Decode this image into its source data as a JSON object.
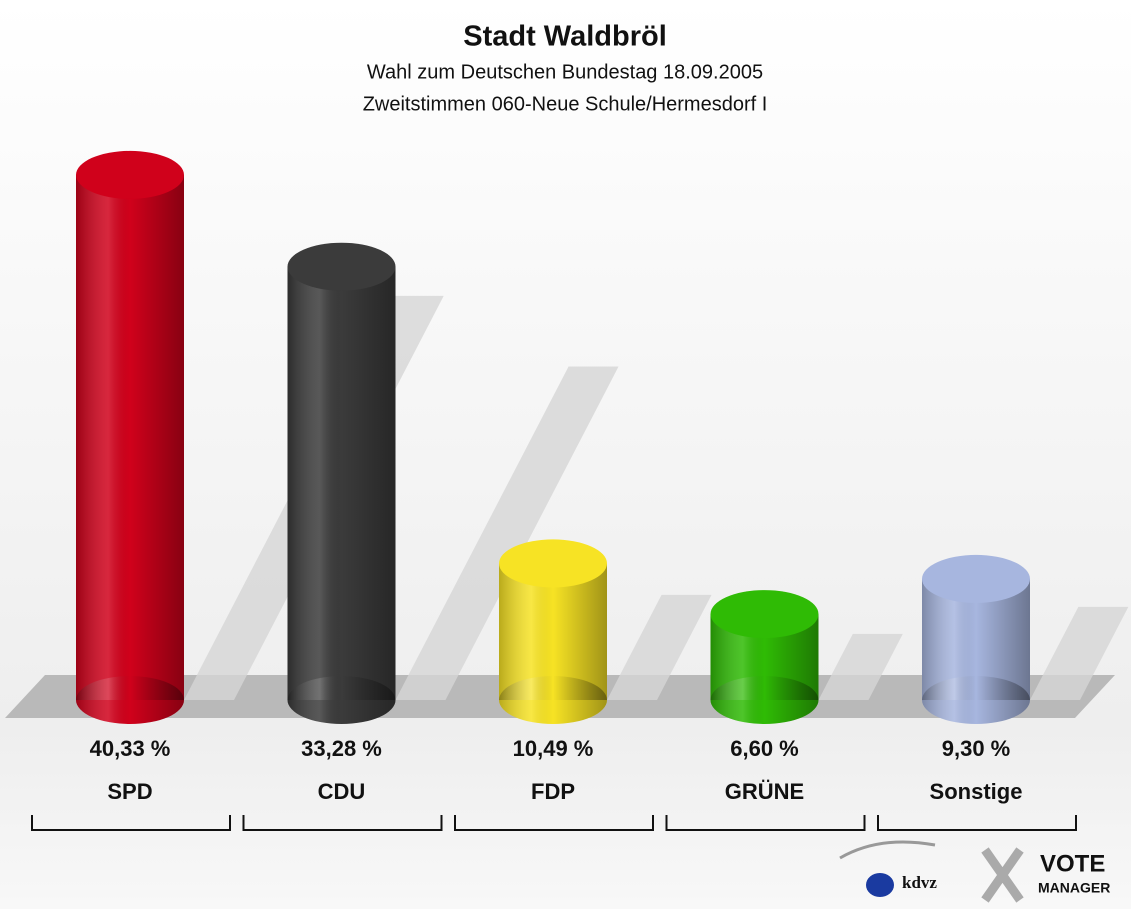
{
  "chart_data": {
    "type": "bar",
    "title": "Stadt Waldbröl",
    "subtitle": [
      "Wahl zum Deutschen Bundestag 18.09.2005",
      "Zweitstimmen 060-Neue Schule/Hermesdorf I"
    ],
    "categories": [
      "SPD",
      "CDU",
      "FDP",
      "GRÜNE",
      "Sonstige"
    ],
    "values": [
      40.33,
      33.28,
      10.49,
      6.6,
      9.3
    ],
    "value_labels": [
      "40,33 %",
      "33,28 %",
      "10,49 %",
      "6,60 %",
      "9,30 %"
    ],
    "colors": [
      "#d0011b",
      "#3b3b3b",
      "#f7e324",
      "#2fbb05",
      "#a7b6df"
    ]
  },
  "logo": {
    "kdvz": "kdvz",
    "vote": "VOTE",
    "manager": "MANAGER"
  }
}
